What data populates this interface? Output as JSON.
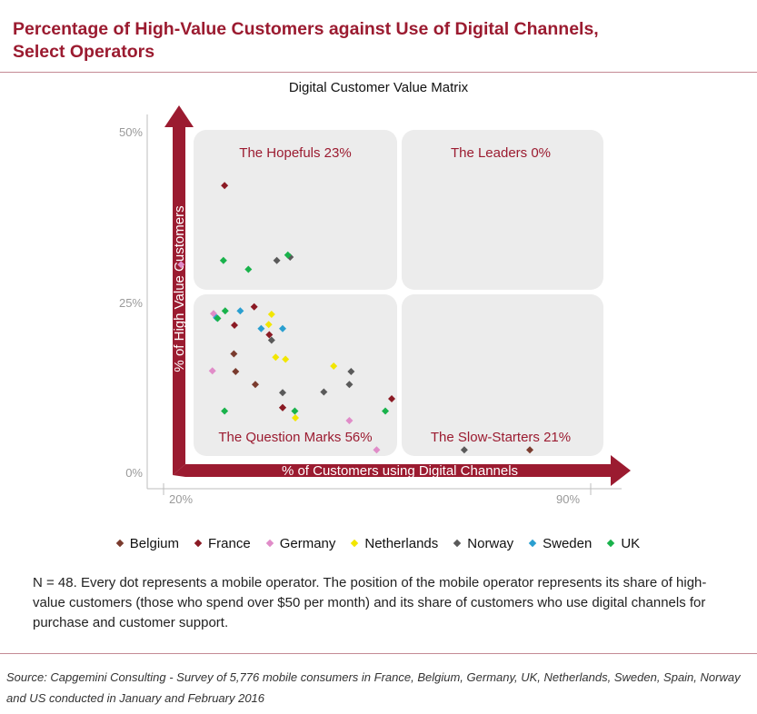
{
  "header": {
    "title_line1": "Percentage of High-Value Customers against Use of Digital Channels,",
    "title_line2": "Select Operators"
  },
  "colors": {
    "brand": "#9b1b30",
    "quadrant_fill": "#ececec",
    "Belgium": "#7a3b2e",
    "France": "#8b1a24",
    "Germany": "#e08cc8",
    "Netherlands": "#f2e600",
    "Norway": "#5a5a5a",
    "Sweden": "#2a9fd0",
    "UK": "#19b24b"
  },
  "note": "N = 48. Every dot represents a mobile operator. The position of the mobile operator represents its share of high-value customers (those who spend over $50 per month) and its share of customers who use digital channels for purchase and customer support.",
  "source": "Source: Capgemini Consulting - Survey of 5,776 mobile consumers in France, Belgium, Germany, UK, Netherlands, Sweden, Spain, Norway and US conducted in January and February 2016",
  "chart_data": {
    "type": "scatter",
    "title": "Digital Customer Value Matrix",
    "xlabel": "% of Customers using Digital Channels",
    "ylabel": "% of High Value Customers",
    "x_ticks": [
      "20%",
      "90%"
    ],
    "y_ticks": [
      "50%",
      "25%",
      "0%"
    ],
    "xlim": [
      20,
      90
    ],
    "ylim": [
      0,
      50
    ],
    "grid": false,
    "legend_position": "bottom",
    "quadrants": [
      {
        "name": "The Hopefuls",
        "share": "23%"
      },
      {
        "name": "The Leaders",
        "share": "0%"
      },
      {
        "name": "The Question Marks",
        "share": "56%"
      },
      {
        "name": "The Slow-Starters",
        "share": "21%"
      }
    ],
    "series": [
      {
        "name": "Belgium",
        "points": [
          [
            31.8,
            17.4
          ],
          [
            32.1,
            14.8
          ],
          [
            35.5,
            12.9
          ],
          [
            40.2,
            9.5
          ],
          [
            82.8,
            3.3
          ]
        ]
      },
      {
        "name": "France",
        "points": [
          [
            30.2,
            42.1
          ],
          [
            31.9,
            21.6
          ],
          [
            35.3,
            24.3
          ],
          [
            37.9,
            20.2
          ],
          [
            40.2,
            9.5
          ],
          [
            59.0,
            10.8
          ]
        ]
      },
      {
        "name": "Germany",
        "points": [
          [
            22.7,
            30.5
          ],
          [
            28.3,
            23.3
          ],
          [
            28.1,
            14.9
          ],
          [
            51.7,
            7.6
          ],
          [
            56.4,
            3.3
          ]
        ]
      },
      {
        "name": "Netherlands",
        "points": [
          [
            37.8,
            21.7
          ],
          [
            38.3,
            23.2
          ],
          [
            39.0,
            16.9
          ],
          [
            40.7,
            16.6
          ],
          [
            42.4,
            8.0
          ],
          [
            49.0,
            15.6
          ]
        ]
      },
      {
        "name": "Norway",
        "points": [
          [
            39.2,
            31.1
          ],
          [
            41.5,
            31.6
          ],
          [
            38.3,
            19.4
          ],
          [
            40.2,
            11.7
          ],
          [
            47.3,
            11.8
          ],
          [
            52.0,
            14.8
          ],
          [
            51.7,
            12.9
          ],
          [
            71.5,
            3.3
          ]
        ]
      },
      {
        "name": "Sweden",
        "points": [
          [
            28.8,
            22.7
          ],
          [
            32.9,
            23.7
          ],
          [
            36.5,
            21.1
          ],
          [
            40.2,
            21.1
          ]
        ]
      },
      {
        "name": "UK",
        "points": [
          [
            30.0,
            31.1
          ],
          [
            34.3,
            29.8
          ],
          [
            41.1,
            31.9
          ],
          [
            29.0,
            22.6
          ],
          [
            30.3,
            23.7
          ],
          [
            30.2,
            9.0
          ],
          [
            42.3,
            9.0
          ],
          [
            57.9,
            9.0
          ]
        ]
      }
    ]
  }
}
